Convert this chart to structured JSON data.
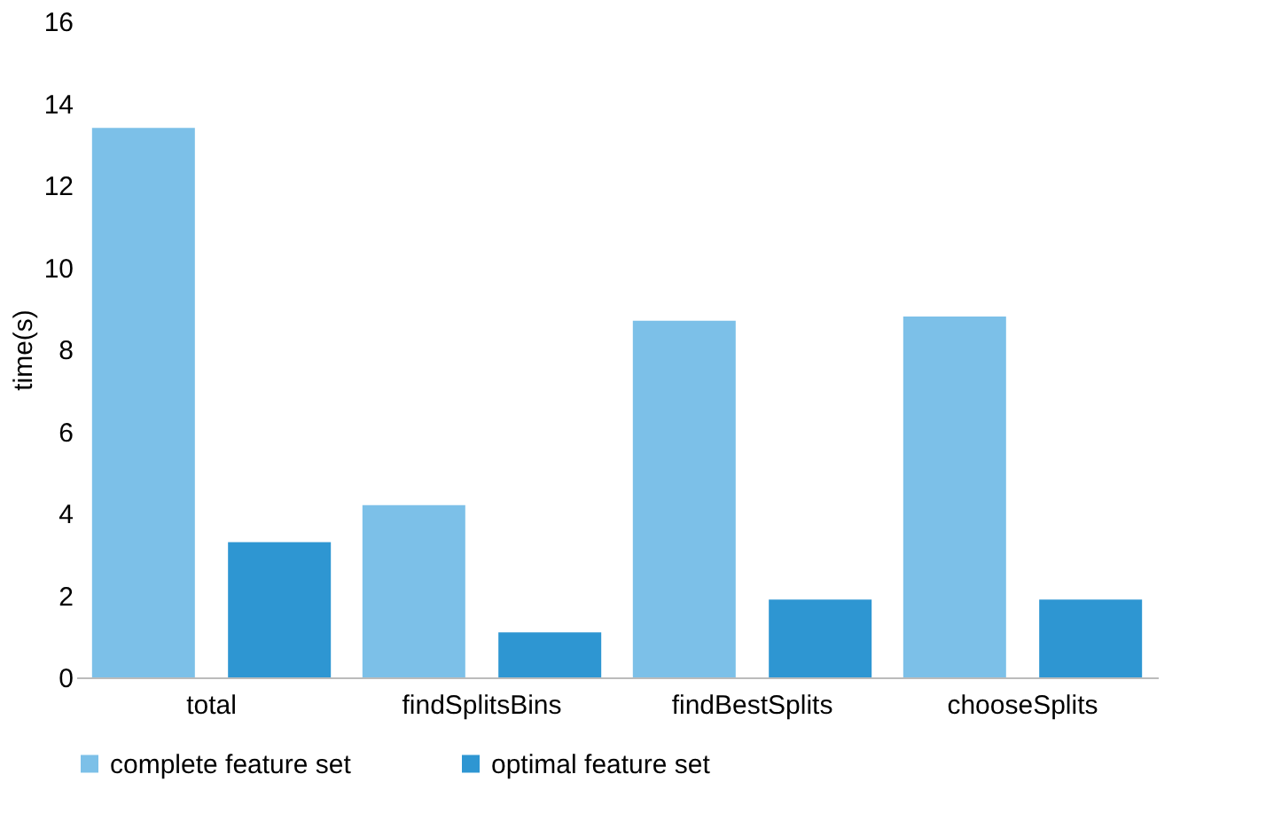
{
  "chart_data": {
    "type": "bar",
    "ylabel": "time(s)",
    "categories": [
      "total",
      "findSplitsBins",
      "findBestSplits",
      "chooseSplits"
    ],
    "series": [
      {
        "name": "complete feature set",
        "color": "#7cc0e8",
        "values": [
          13.4,
          4.2,
          8.7,
          8.8
        ]
      },
      {
        "name": "optimal feature set",
        "color": "#2e96d2",
        "values": [
          3.3,
          1.1,
          1.9,
          1.9
        ]
      }
    ],
    "ylim": [
      0,
      16
    ],
    "yticks": [
      0,
      2,
      4,
      6,
      8,
      10,
      12,
      14,
      16
    ],
    "grid": false,
    "legend": "bottom"
  }
}
